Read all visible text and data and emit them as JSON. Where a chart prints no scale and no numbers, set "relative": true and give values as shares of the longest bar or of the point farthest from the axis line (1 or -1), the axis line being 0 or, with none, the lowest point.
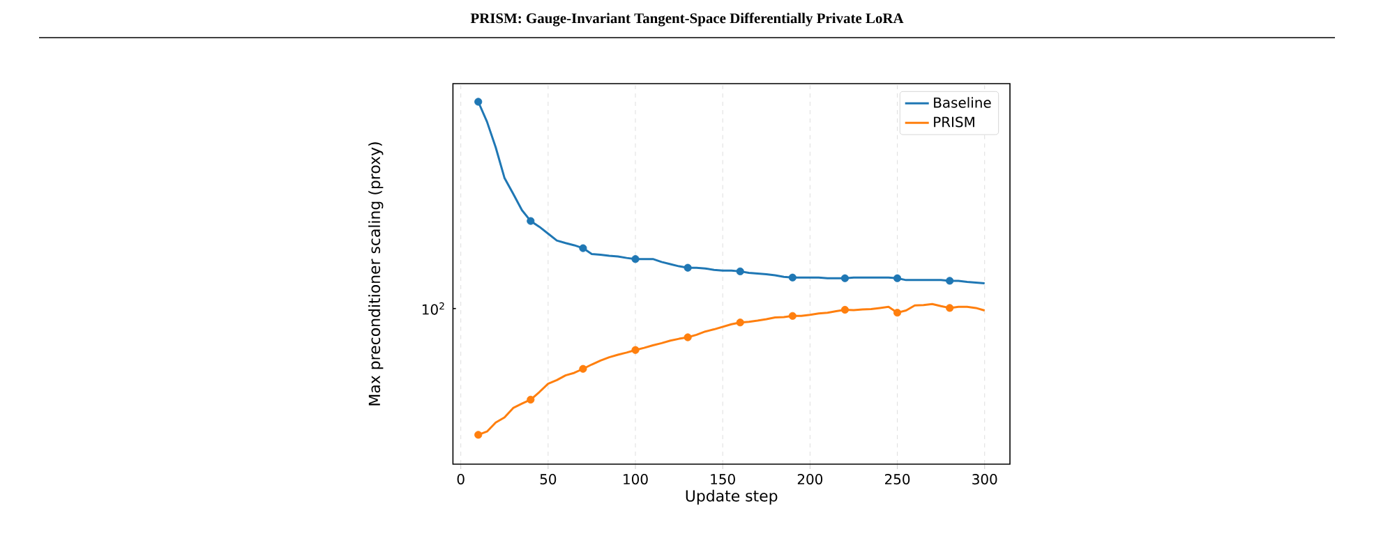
{
  "chart_data": {
    "type": "line",
    "title": "PRISM: Gauge-Invariant Tangent-Space Differentially Private LoRA",
    "xlabel": "Update step",
    "ylabel": "Max preconditioner scaling (proxy)",
    "x": [
      10,
      15,
      20,
      25,
      30,
      35,
      40,
      45,
      50,
      55,
      60,
      65,
      70,
      75,
      80,
      85,
      90,
      95,
      100,
      105,
      110,
      115,
      120,
      125,
      130,
      135,
      140,
      145,
      150,
      155,
      160,
      165,
      170,
      175,
      180,
      185,
      190,
      195,
      200,
      205,
      210,
      215,
      220,
      225,
      230,
      235,
      240,
      245,
      250,
      255,
      260,
      265,
      270,
      275,
      280,
      285,
      290,
      295,
      300
    ],
    "series": [
      {
        "name": "Baseline",
        "color": "#1f77b4",
        "values": [
          1,
          0.945,
          0.874,
          0.79,
          0.746,
          0.701,
          0.671,
          0.655,
          0.636,
          0.617,
          0.61,
          0.604,
          0.596,
          0.58,
          0.578,
          0.575,
          0.573,
          0.569,
          0.566,
          0.566,
          0.566,
          0.558,
          0.552,
          0.546,
          0.542,
          0.542,
          0.54,
          0.536,
          0.534,
          0.534,
          0.532,
          0.528,
          0.526,
          0.524,
          0.521,
          0.517,
          0.515,
          0.515,
          0.515,
          0.515,
          0.513,
          0.513,
          0.513,
          0.515,
          0.515,
          0.515,
          0.515,
          0.515,
          0.513,
          0.508,
          0.508,
          0.508,
          0.508,
          0.508,
          0.506,
          0.506,
          0.503,
          0.501,
          0.499
        ]
      },
      {
        "name": "PRISM",
        "color": "#ff7f0e",
        "values": [
          0.081,
          0.09,
          0.115,
          0.129,
          0.155,
          0.167,
          0.178,
          0.199,
          0.222,
          0.232,
          0.245,
          0.252,
          0.263,
          0.275,
          0.286,
          0.295,
          0.302,
          0.308,
          0.315,
          0.321,
          0.328,
          0.334,
          0.341,
          0.346,
          0.35,
          0.357,
          0.366,
          0.372,
          0.379,
          0.386,
          0.391,
          0.393,
          0.396,
          0.4,
          0.405,
          0.406,
          0.409,
          0.409,
          0.412,
          0.416,
          0.418,
          0.422,
          0.426,
          0.425,
          0.427,
          0.428,
          0.431,
          0.434,
          0.418,
          0.424,
          0.438,
          0.439,
          0.442,
          0.436,
          0.431,
          0.434,
          0.434,
          0.431,
          0.424
        ]
      },
      {
        "type": "scatter",
        "color": "#1f77b4",
        "marker": "circle",
        "x": [
          10,
          40,
          70,
          100,
          130,
          160,
          190,
          220,
          250,
          280
        ],
        "values": [
          1,
          0.671,
          0.596,
          0.566,
          0.542,
          0.532,
          0.515,
          0.513,
          0.513,
          0.506
        ]
      },
      {
        "type": "scatter",
        "color": "#ff7f0e",
        "marker": "circle",
        "x": [
          10,
          40,
          70,
          100,
          130,
          160,
          190,
          220,
          250,
          280
        ],
        "values": [
          0.081,
          0.178,
          0.263,
          0.315,
          0.35,
          0.391,
          0.409,
          0.426,
          0.418,
          0.431
        ]
      }
    ],
    "relative": true,
    "annotations": [
      "10$^{2}$"
    ],
    "xlim": [
      -4.5,
      314.5
    ],
    "xticks": [
      0,
      50,
      100,
      150,
      200,
      250,
      300
    ],
    "grid": "x",
    "legend": "top right",
    "line_style": "solid"
  }
}
